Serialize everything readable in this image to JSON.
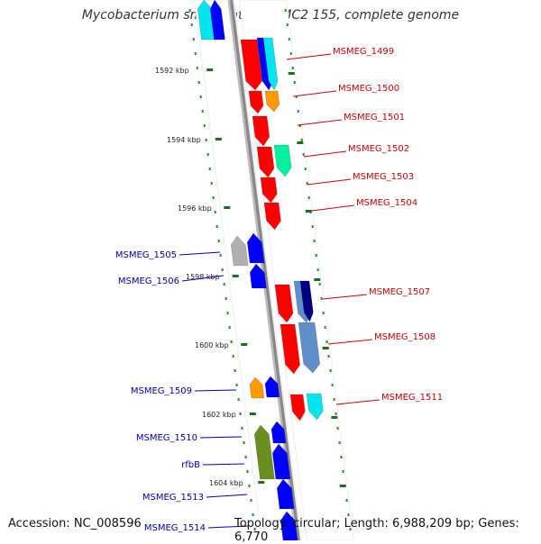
{
  "title": "Mycobacterium smegmatis str. MC2 155, complete genome",
  "footer": {
    "accession": "Accession: NC_008596",
    "summary": "Topology: circular; Length: 6,988,209 bp; Genes: 6,770"
  },
  "colors": {
    "forward_label": "#cc0000",
    "reverse_label": "#0000aa",
    "backbone": "#888888",
    "ruler_dots": "#2a8a2a",
    "red": "#ff0000",
    "blue": "#0000ff",
    "cyan": "#00e5ee",
    "orange": "#ff9900",
    "teal": "#00f0a0",
    "grey": "#b0b0b0",
    "navy": "#000080",
    "steel": "#5f8fc8",
    "olive": "#6b8e23"
  },
  "ruler_labels": [
    "1592 kbp",
    "1594 kbp",
    "1596 kbp",
    "1598 kbp",
    "1600 kbp",
    "1602 kbp",
    "1604 kbp"
  ],
  "forward_labels": [
    "MSMEG_1499",
    "MSMEG_1500",
    "MSMEG_1501",
    "MSMEG_1502",
    "MSMEG_1503",
    "MSMEG_1504",
    "MSMEG_1507",
    "MSMEG_1508",
    "MSMEG_1511"
  ],
  "reverse_labels": [
    "MSMEG_1505",
    "MSMEG_1506",
    "MSMEG_1509",
    "MSMEG_1510",
    "rfbB",
    "MSMEG_1513",
    "MSMEG_1514"
  ]
}
